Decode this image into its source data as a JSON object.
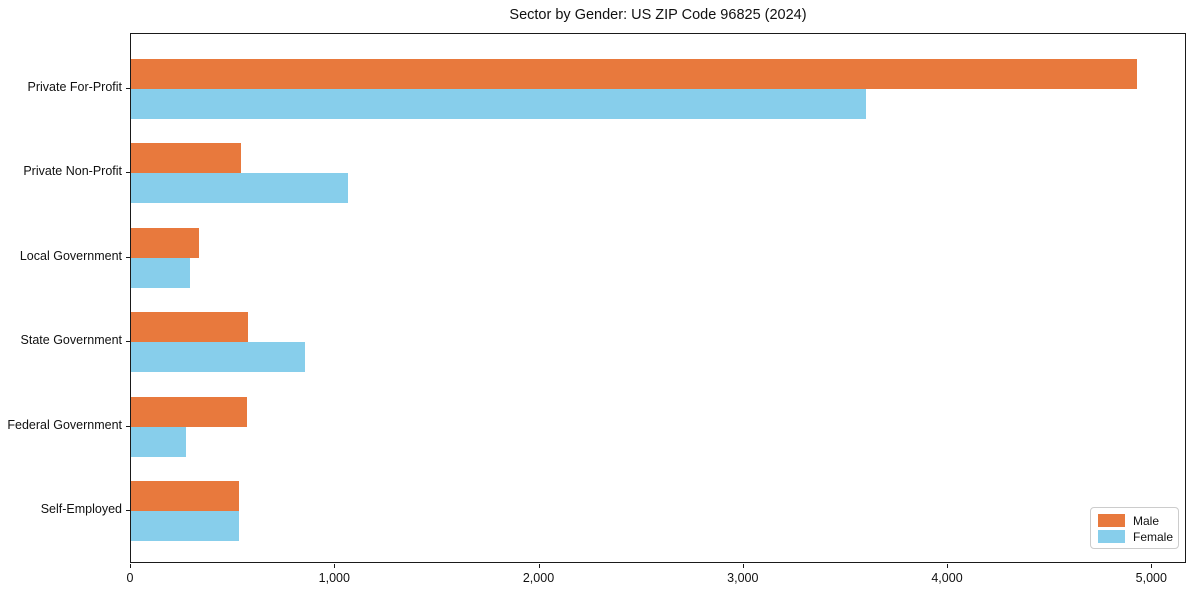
{
  "chart_data": {
    "type": "bar",
    "orientation": "horizontal",
    "title": "Sector by Gender: US ZIP Code 96825 (2024)",
    "categories": [
      "Private For-Profit",
      "Private Non-Profit",
      "Local Government",
      "State Government",
      "Federal Government",
      "Self-Employed"
    ],
    "series": [
      {
        "name": "Male",
        "color": "#e8793d",
        "values": [
          4925,
          540,
          335,
          575,
          570,
          530
        ]
      },
      {
        "name": "Female",
        "color": "#87ceeb",
        "values": [
          3600,
          1060,
          290,
          850,
          270,
          530
        ]
      }
    ],
    "xlabel": "",
    "ylabel": "",
    "xlim": [
      0,
      5170
    ],
    "xticks": [
      0,
      1000,
      2000,
      3000,
      4000,
      5000
    ],
    "xtick_labels": [
      "0",
      "1,000",
      "2,000",
      "3,000",
      "4,000",
      "5,000"
    ],
    "legend_position": "lower right",
    "grid": false,
    "background_color": "#ffffff",
    "spine_color": "#1a1a1a"
  }
}
